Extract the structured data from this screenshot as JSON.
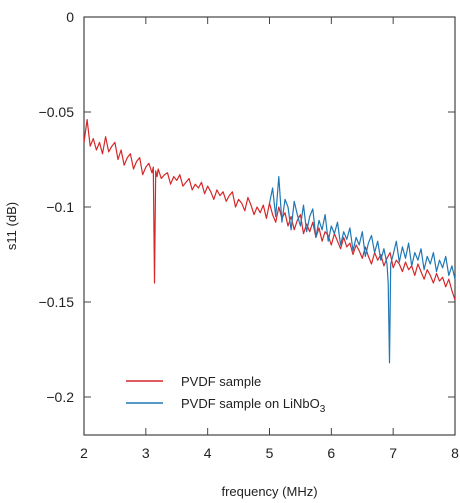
{
  "chart_data": {
    "type": "line",
    "xlabel": "frequency (MHz)",
    "ylabel": "s11 (dB)",
    "xlim": [
      2,
      8
    ],
    "ylim": [
      -0.22,
      0
    ],
    "xticks": [
      2,
      3,
      4,
      5,
      6,
      7,
      8
    ],
    "xtick_labels": [
      "2",
      "3",
      "4",
      "5",
      "6",
      "7",
      "8"
    ],
    "yticks": [
      0,
      -0.05,
      -0.1,
      -0.15,
      -0.2
    ],
    "ytick_labels": [
      "0",
      "−0.05",
      "−0.1",
      "−0.15",
      "−0.2"
    ],
    "grid": false,
    "legend_position": "bottom-left",
    "series": [
      {
        "name": "PVDF sample",
        "color": "#d62728",
        "x": [
          2.0,
          2.05,
          2.1,
          2.15,
          2.2,
          2.25,
          2.3,
          2.35,
          2.4,
          2.45,
          2.5,
          2.55,
          2.6,
          2.65,
          2.7,
          2.75,
          2.8,
          2.85,
          2.9,
          2.95,
          3.0,
          3.05,
          3.1,
          3.12,
          3.14,
          3.16,
          3.18,
          3.2,
          3.25,
          3.3,
          3.35,
          3.4,
          3.45,
          3.5,
          3.55,
          3.6,
          3.65,
          3.7,
          3.75,
          3.8,
          3.85,
          3.9,
          3.95,
          4.0,
          4.05,
          4.1,
          4.15,
          4.2,
          4.25,
          4.3,
          4.35,
          4.4,
          4.45,
          4.5,
          4.55,
          4.6,
          4.65,
          4.7,
          4.75,
          4.8,
          4.85,
          4.9,
          4.95,
          5.0,
          5.05,
          5.1,
          5.15,
          5.2,
          5.25,
          5.3,
          5.35,
          5.4,
          5.45,
          5.5,
          5.55,
          5.6,
          5.65,
          5.7,
          5.75,
          5.8,
          5.85,
          5.9,
          5.95,
          6.0,
          6.05,
          6.1,
          6.15,
          6.2,
          6.25,
          6.3,
          6.35,
          6.4,
          6.45,
          6.5,
          6.55,
          6.6,
          6.65,
          6.7,
          6.75,
          6.8,
          6.85,
          6.9,
          6.95,
          7.0,
          7.05,
          7.1,
          7.15,
          7.2,
          7.25,
          7.3,
          7.35,
          7.4,
          7.45,
          7.5,
          7.55,
          7.6,
          7.65,
          7.7,
          7.75,
          7.8,
          7.85,
          7.9,
          7.95,
          8.0
        ],
        "values": [
          -0.066,
          -0.054,
          -0.068,
          -0.064,
          -0.07,
          -0.066,
          -0.072,
          -0.063,
          -0.071,
          -0.068,
          -0.066,
          -0.075,
          -0.07,
          -0.078,
          -0.074,
          -0.072,
          -0.08,
          -0.076,
          -0.074,
          -0.083,
          -0.079,
          -0.077,
          -0.082,
          -0.079,
          -0.14,
          -0.081,
          -0.084,
          -0.08,
          -0.085,
          -0.083,
          -0.082,
          -0.088,
          -0.084,
          -0.086,
          -0.083,
          -0.089,
          -0.087,
          -0.085,
          -0.091,
          -0.088,
          -0.09,
          -0.087,
          -0.093,
          -0.089,
          -0.092,
          -0.096,
          -0.091,
          -0.094,
          -0.092,
          -0.097,
          -0.094,
          -0.092,
          -0.1,
          -0.096,
          -0.098,
          -0.102,
          -0.095,
          -0.099,
          -0.104,
          -0.1,
          -0.103,
          -0.099,
          -0.106,
          -0.098,
          -0.104,
          -0.108,
          -0.1,
          -0.106,
          -0.103,
          -0.11,
          -0.105,
          -0.112,
          -0.107,
          -0.104,
          -0.114,
          -0.109,
          -0.113,
          -0.108,
          -0.116,
          -0.111,
          -0.118,
          -0.113,
          -0.115,
          -0.12,
          -0.114,
          -0.118,
          -0.122,
          -0.116,
          -0.121,
          -0.119,
          -0.125,
          -0.12,
          -0.123,
          -0.127,
          -0.121,
          -0.126,
          -0.13,
          -0.124,
          -0.128,
          -0.125,
          -0.131,
          -0.127,
          -0.124,
          -0.132,
          -0.128,
          -0.13,
          -0.134,
          -0.129,
          -0.133,
          -0.131,
          -0.136,
          -0.13,
          -0.134,
          -0.138,
          -0.133,
          -0.136,
          -0.14,
          -0.135,
          -0.139,
          -0.137,
          -0.142,
          -0.138,
          -0.144,
          -0.149
        ]
      },
      {
        "name": "PVDF sample on LiNbO3",
        "color": "#1f77b4",
        "x": [
          5.0,
          5.05,
          5.1,
          5.15,
          5.2,
          5.25,
          5.3,
          5.35,
          5.4,
          5.45,
          5.5,
          5.55,
          5.6,
          5.65,
          5.7,
          5.75,
          5.8,
          5.85,
          5.9,
          5.95,
          6.0,
          6.05,
          6.1,
          6.15,
          6.2,
          6.25,
          6.3,
          6.35,
          6.4,
          6.45,
          6.5,
          6.55,
          6.6,
          6.65,
          6.7,
          6.75,
          6.8,
          6.85,
          6.9,
          6.92,
          6.94,
          6.96,
          7.0,
          7.05,
          7.1,
          7.15,
          7.2,
          7.25,
          7.3,
          7.35,
          7.4,
          7.45,
          7.5,
          7.55,
          7.6,
          7.65,
          7.7,
          7.75,
          7.8,
          7.85,
          7.9,
          7.95,
          8.0
        ],
        "values": [
          -0.098,
          -0.09,
          -0.105,
          -0.084,
          -0.108,
          -0.096,
          -0.1,
          -0.112,
          -0.097,
          -0.104,
          -0.11,
          -0.099,
          -0.113,
          -0.105,
          -0.101,
          -0.116,
          -0.107,
          -0.112,
          -0.104,
          -0.118,
          -0.11,
          -0.114,
          -0.108,
          -0.12,
          -0.113,
          -0.117,
          -0.111,
          -0.123,
          -0.116,
          -0.12,
          -0.113,
          -0.126,
          -0.119,
          -0.115,
          -0.124,
          -0.118,
          -0.128,
          -0.122,
          -0.13,
          -0.14,
          -0.182,
          -0.13,
          -0.125,
          -0.118,
          -0.129,
          -0.121,
          -0.127,
          -0.119,
          -0.131,
          -0.124,
          -0.128,
          -0.122,
          -0.133,
          -0.126,
          -0.13,
          -0.124,
          -0.134,
          -0.128,
          -0.132,
          -0.126,
          -0.136,
          -0.131,
          -0.138
        ]
      }
    ],
    "legend": [
      {
        "label_main": "PVDF sample",
        "label_sub": ""
      },
      {
        "label_main": "PVDF sample on LiNbO",
        "label_sub": "3"
      }
    ]
  }
}
